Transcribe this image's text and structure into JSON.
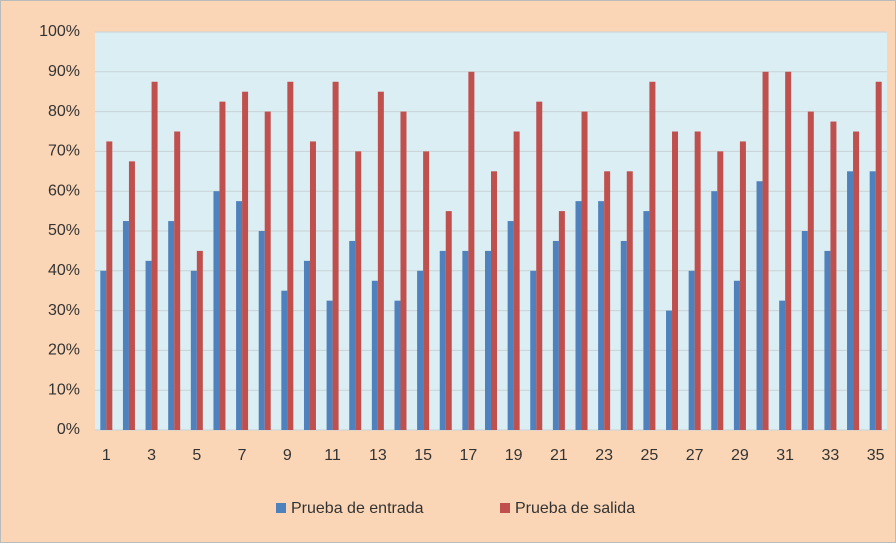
{
  "chart_data": {
    "type": "bar",
    "categories": [
      1,
      null,
      3,
      null,
      5,
      null,
      7,
      null,
      9,
      null,
      11,
      null,
      13,
      null,
      15,
      null,
      17,
      null,
      19,
      null,
      21,
      null,
      23,
      null,
      25,
      null,
      27,
      null,
      29,
      null,
      31,
      null,
      33,
      null,
      35
    ],
    "series": [
      {
        "name": "Prueba de entrada",
        "color": "#4f81bd",
        "values": [
          40,
          52.5,
          42.5,
          52.5,
          40,
          60,
          57.5,
          50,
          35,
          42.5,
          32.5,
          47.5,
          37.5,
          32.5,
          40,
          45,
          45,
          45,
          52.5,
          40,
          47.5,
          57.5,
          57.5,
          47.5,
          55,
          30,
          40,
          60,
          37.5,
          62.5,
          32.5,
          50,
          45,
          65,
          65
        ]
      },
      {
        "name": "Prueba de salida",
        "color": "#c0504d",
        "values": [
          72.5,
          67.5,
          87.5,
          75,
          45,
          82.5,
          85,
          80,
          87.5,
          72.5,
          87.5,
          70,
          85,
          80,
          70,
          55,
          90,
          65,
          75,
          82.5,
          55,
          80,
          65,
          65,
          87.5,
          75,
          75,
          70,
          72.5,
          90,
          90,
          80,
          77.5,
          75,
          87.5
        ]
      }
    ],
    "ylim": [
      0,
      100
    ],
    "yticks": [
      {
        "value": 0,
        "label": "0%"
      },
      {
        "value": 10,
        "label": "10%"
      },
      {
        "value": 20,
        "label": "20%"
      },
      {
        "value": 30,
        "label": "30%"
      },
      {
        "value": 40,
        "label": "40%"
      },
      {
        "value": 50,
        "label": "50%"
      },
      {
        "value": 60,
        "label": "60%"
      },
      {
        "value": 70,
        "label": "70%"
      },
      {
        "value": 80,
        "label": "80%"
      },
      {
        "value": 90,
        "label": "90%"
      },
      {
        "value": 100,
        "label": "100%"
      }
    ],
    "grid": true,
    "legend": "bottom"
  }
}
